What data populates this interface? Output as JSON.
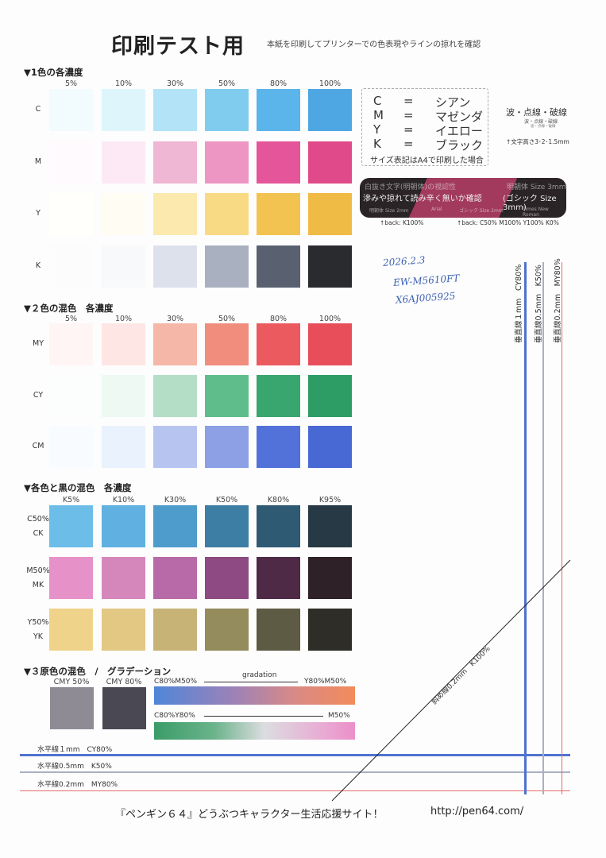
{
  "header": {
    "title": "印刷テスト用",
    "subtitle": "本紙を印刷してプリンターでの色表現やラインの掠れを確認"
  },
  "section1": {
    "heading": "▼1色の各濃度",
    "columns": [
      "5%",
      "10%",
      "30%",
      "50%",
      "80%",
      "100%"
    ],
    "rows": [
      {
        "label": "C",
        "colors": [
          "#f2fbfe",
          "#dff5fc",
          "#b3e3f6",
          "#80ccef",
          "#5bb4ea",
          "#4ea6e3"
        ]
      },
      {
        "label": "M",
        "colors": [
          "#fffafd",
          "#fde9f5",
          "#efb7d3",
          "#ed96c3",
          "#e4559a",
          "#e14a8a"
        ]
      },
      {
        "label": "Y",
        "colors": [
          "#fffffb",
          "#fffdf3",
          "#fbe9ae",
          "#f8da85",
          "#f3c352",
          "#f0bb45"
        ]
      },
      {
        "label": "K",
        "colors": [
          "#fcfcfd",
          "#f8f9fb",
          "#dde1ec",
          "#a9b0bf",
          "#596171",
          "#2a2b2f"
        ]
      }
    ]
  },
  "section2": {
    "heading": "▼２色の混色　各濃度",
    "columns": [
      "5%",
      "10%",
      "30%",
      "50%",
      "80%",
      "100%"
    ],
    "rows": [
      {
        "label": "MY",
        "colors": [
          "#fff5f4",
          "#fde6e4",
          "#f5b7a7",
          "#f08d7c",
          "#ea5a5f",
          "#e84e5a"
        ]
      },
      {
        "label": "CY",
        "colors": [
          "#fbfefc",
          "#eef9f4",
          "#b4dec6",
          "#5fbd8c",
          "#3aa66f",
          "#2d9d65"
        ]
      },
      {
        "label": "CM",
        "colors": [
          "#f8fbff",
          "#eaf2fd",
          "#b8c4f0",
          "#8d9fe5",
          "#5272d9",
          "#4868d3"
        ]
      }
    ]
  },
  "section3": {
    "heading": "▼各色と黒の混色　各濃度",
    "columns": [
      "K5%",
      "K10%",
      "K30%",
      "K50%",
      "K80%",
      "K95%"
    ],
    "rows": [
      {
        "label": "C50%",
        "sub": "CK",
        "colors": [
          "#6dbde9",
          "#60b0e1",
          "#4d9ccb",
          "#3d7ea5",
          "#2f5a74",
          "#263945"
        ]
      },
      {
        "label": "M50%",
        "sub": "MK",
        "colors": [
          "#e691c8",
          "#d587bc",
          "#b86aa8",
          "#8d4a83",
          "#4e2a47",
          "#2f2128"
        ]
      },
      {
        "label": "Y50%",
        "sub": "YK",
        "colors": [
          "#f0d38b",
          "#e2c883",
          "#c6b375",
          "#948c5c",
          "#5e5b44",
          "#2e2d27"
        ]
      }
    ]
  },
  "section4": {
    "heading": "▼３原色の混色　/　グラデーション",
    "cmy50": "CMY 50%",
    "cmy80": "CMY 80%",
    "cmy50_color": "#8e8b94",
    "cmy80_color": "#4a4853",
    "grad1_left": "C80%M50%",
    "grad1_mid": "gradation",
    "grad1_right": "Y80%M50%",
    "grad2_left": "C80%Y80%",
    "grad2_right": "M50%"
  },
  "legend": {
    "rows": [
      [
        "C",
        "=",
        "シアン"
      ],
      [
        "M",
        "=",
        "マゼンダ"
      ],
      [
        "Y",
        "=",
        "イエロー"
      ],
      [
        "K",
        "=",
        "ブラック"
      ]
    ],
    "note": "サイズ表記はA4で印刷した場合"
  },
  "lines_note": {
    "title": "波・点線・破線",
    "sub1": "波・点線・破線",
    "sub2": "波・点線・破線",
    "height": "↑文字高さ3･2･1.5mm"
  },
  "banner": {
    "line1_left": "白抜き文字(明朝体)の視認性",
    "line1_right": "明朝体 Size 3mm",
    "line2_left": "滲みや掠れて読み辛く無いか確認",
    "line2_right": "(ゴシック Size 3mm)",
    "line3_a": "明朝体 Size 2mm",
    "line3_b": "Arial",
    "line3_c": "ゴシック Size 2mm",
    "line3_d": "Times New Roman",
    "back1": "↑back: K100%",
    "back2": "↑back: C50% M100% Y100% K0%"
  },
  "handwriting": {
    "date": "2026.2.3",
    "model": "EW-M5610FT",
    "serial": "X6AJ005925"
  },
  "hlines": [
    {
      "label": "水平線１mm　CY80%",
      "color": "#4f72cf"
    },
    {
      "label": "水平線0.5mm　K50%",
      "color": "#a9b0c0"
    },
    {
      "label": "水平線0.2mm　MY80%",
      "color": "#e66b6b"
    }
  ],
  "vlines": [
    {
      "label": "垂直線１mm　CY80%",
      "color": "#4f72cf"
    },
    {
      "label": "垂直線0.5mm　K50%",
      "color": "#a9b0c0"
    },
    {
      "label": "垂直線0.2mm　MY80%",
      "color": "#e66b6b"
    }
  ],
  "diagonal": {
    "label": "斜め線0.2mm　K100%"
  },
  "footer": {
    "site": "『ペンギン６４』どうぶつキャラクター生活応援サイト！",
    "url": "http://pen64.com/"
  }
}
